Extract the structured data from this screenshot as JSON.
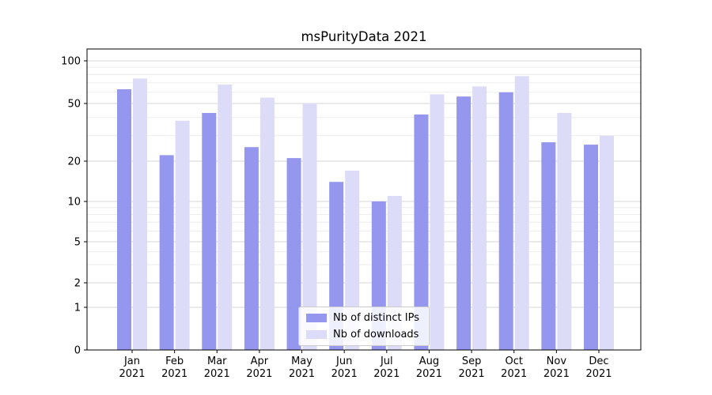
{
  "chart_data": {
    "type": "bar",
    "title": "msPurityData 2021",
    "categories": [
      "Jan 2021",
      "Feb 2021",
      "Mar 2021",
      "Apr 2021",
      "May 2021",
      "Jun 2021",
      "Jul 2021",
      "Aug 2021",
      "Sep 2021",
      "Oct 2021",
      "Nov 2021",
      "Dec 2021"
    ],
    "series": [
      {
        "name": "Nb of distinct IPs",
        "color": "#9597ee",
        "values": [
          63,
          22,
          43,
          25,
          21,
          14,
          10,
          42,
          56,
          60,
          27,
          26
        ]
      },
      {
        "name": "Nb of downloads",
        "color": "#dcdcf8",
        "values": [
          75,
          38,
          68,
          55,
          50,
          17,
          11,
          58,
          66,
          78,
          43,
          30
        ]
      }
    ],
    "xlabel": "",
    "ylabel": "",
    "yscale": "symlog",
    "yticks": [
      0,
      1,
      2,
      5,
      10,
      20,
      50,
      100
    ],
    "yticks_minor": [
      3,
      4,
      6,
      7,
      8,
      9,
      30,
      40,
      60,
      70,
      80,
      90
    ],
    "ylim": [
      0,
      120
    ],
    "grid": true,
    "legend": {
      "position": "lower center",
      "labels": [
        "Nb of distinct IPs",
        "Nb of downloads"
      ]
    },
    "colors": {
      "grid_major": "#d6d6d6",
      "grid_minor": "#ebebeb",
      "axis": "#000000",
      "legend_border": "#cccccc",
      "background": "#ffffff"
    }
  }
}
